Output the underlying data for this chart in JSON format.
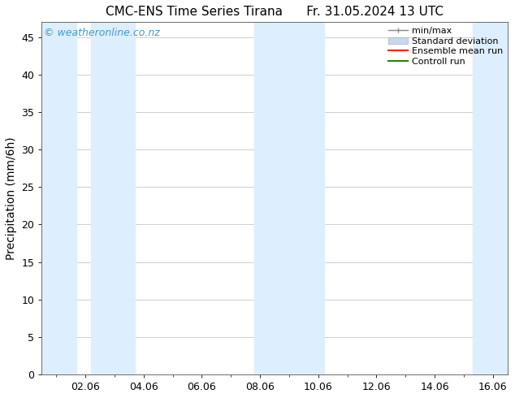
{
  "title_left": "CMC-ENS Time Series Tirana",
  "title_right": "Fr. 31.05.2024 13 UTC",
  "ylabel": "Precipitation (mm/6h)",
  "watermark": "© weatheronline.co.nz",
  "xlim_start": 0.5,
  "xlim_end": 16.5,
  "ylim": [
    0,
    47
  ],
  "yticks": [
    0,
    5,
    10,
    15,
    20,
    25,
    30,
    35,
    40,
    45
  ],
  "xtick_labels": [
    "02.06",
    "04.06",
    "06.06",
    "08.06",
    "10.06",
    "12.06",
    "14.06",
    "16.06"
  ],
  "xtick_positions": [
    2,
    4,
    6,
    8,
    10,
    12,
    14,
    16
  ],
  "shaded_bands": [
    [
      0.5,
      1.7
    ],
    [
      2.2,
      3.7
    ],
    [
      7.8,
      10.2
    ],
    [
      15.3,
      16.5
    ]
  ],
  "shade_color": "#ddeeff",
  "background_color": "#ffffff",
  "legend_items": [
    {
      "label": "min/max",
      "type": "errorbar",
      "color": "#aaaaaa"
    },
    {
      "label": "Standard deviation",
      "type": "fill",
      "color": "#c8d8e8"
    },
    {
      "label": "Ensemble mean run",
      "type": "line",
      "color": "#ff0000"
    },
    {
      "label": "Controll run",
      "type": "line",
      "color": "#008000"
    }
  ],
  "title_fontsize": 11,
  "axis_fontsize": 10,
  "tick_fontsize": 9,
  "watermark_color": "#4499cc",
  "watermark_fontsize": 9,
  "legend_fontsize": 8
}
